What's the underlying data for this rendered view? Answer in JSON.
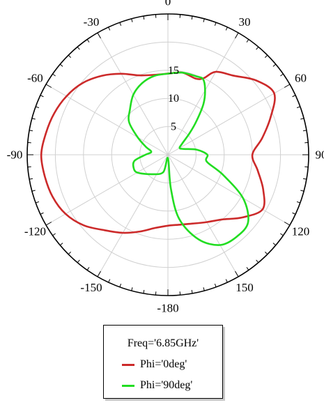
{
  "chart_data": {
    "type": "polar-line",
    "angle_unit": "deg",
    "angle_ticks": [
      {
        "angle": 0,
        "label": "0"
      },
      {
        "angle": 30,
        "label": "30"
      },
      {
        "angle": 60,
        "label": "60"
      },
      {
        "angle": 90,
        "label": "90"
      },
      {
        "angle": 120,
        "label": "120"
      },
      {
        "angle": 150,
        "label": "150"
      },
      {
        "angle": 180,
        "label": "-180"
      },
      {
        "angle": -150,
        "label": "-150"
      },
      {
        "angle": -120,
        "label": "-120"
      },
      {
        "angle": -90,
        "label": "-90"
      },
      {
        "angle": -60,
        "label": "-60"
      },
      {
        "angle": -30,
        "label": "-30"
      }
    ],
    "radial_ticks": [
      {
        "value": 5,
        "label": "5"
      },
      {
        "value": 10,
        "label": "10"
      },
      {
        "value": 15,
        "label": "15"
      }
    ],
    "rlim": [
      0,
      25
    ],
    "grid": true,
    "legend": {
      "title": "Freq='6.85GHz'",
      "placement": "bottom-center"
    },
    "series": [
      {
        "name": "Phi='0deg'",
        "color": "#cc2a2a",
        "points": [
          [
            0,
            14.4
          ],
          [
            10,
            14.8
          ],
          [
            20,
            14.4
          ],
          [
            25,
            15.0
          ],
          [
            30,
            17.0
          ],
          [
            40,
            18.3
          ],
          [
            50,
            20.5
          ],
          [
            60,
            21.8
          ],
          [
            70,
            19.4
          ],
          [
            80,
            17.0
          ],
          [
            90,
            15.0
          ],
          [
            100,
            16.2
          ],
          [
            110,
            18.0
          ],
          [
            120,
            19.4
          ],
          [
            130,
            17.3
          ],
          [
            140,
            15.0
          ],
          [
            150,
            13.8
          ],
          [
            160,
            13.0
          ],
          [
            170,
            12.6
          ],
          [
            180,
            12.6
          ],
          [
            -170,
            13.2
          ],
          [
            -160,
            14.5
          ],
          [
            -150,
            16.0
          ],
          [
            -140,
            17.5
          ],
          [
            -130,
            19.5
          ],
          [
            -120,
            21.0
          ],
          [
            -110,
            21.8
          ],
          [
            -100,
            22.2
          ],
          [
            -90,
            22.5
          ],
          [
            -80,
            22.0
          ],
          [
            -70,
            21.5
          ],
          [
            -60,
            20.8
          ],
          [
            -50,
            19.8
          ],
          [
            -40,
            18.3
          ],
          [
            -30,
            16.6
          ],
          [
            -20,
            15.0
          ],
          [
            -10,
            14.4
          ],
          [
            0,
            14.4
          ]
        ]
      },
      {
        "name": "Phi='90deg'",
        "color": "#22dd22",
        "points": [
          [
            0,
            14.4
          ],
          [
            10,
            14.8
          ],
          [
            20,
            14.8
          ],
          [
            25,
            14.8
          ],
          [
            30,
            13.2
          ],
          [
            35,
            11.0
          ],
          [
            40,
            8.0
          ],
          [
            45,
            5.5
          ],
          [
            52,
            3.2
          ],
          [
            60,
            2.4
          ],
          [
            70,
            3.0
          ],
          [
            80,
            5.2
          ],
          [
            90,
            7.0
          ],
          [
            100,
            7.0
          ],
          [
            110,
            10.4
          ],
          [
            120,
            15.4
          ],
          [
            130,
            18.6
          ],
          [
            140,
            19.0
          ],
          [
            150,
            18.5
          ],
          [
            160,
            16.0
          ],
          [
            170,
            11.6
          ],
          [
            175,
            6.0
          ],
          [
            180,
            0.6
          ],
          [
            -165,
            3.2
          ],
          [
            -140,
            4.5
          ],
          [
            -120,
            6.3
          ],
          [
            -110,
            6.5
          ],
          [
            -100,
            6.0
          ],
          [
            -90,
            4.0
          ],
          [
            -80,
            3.0
          ],
          [
            -70,
            4.2
          ],
          [
            -60,
            6.2
          ],
          [
            -50,
            9.0
          ],
          [
            -40,
            10.5
          ],
          [
            -30,
            12.3
          ],
          [
            -20,
            13.5
          ],
          [
            -10,
            14.2
          ],
          [
            0,
            14.4
          ]
        ]
      }
    ]
  }
}
